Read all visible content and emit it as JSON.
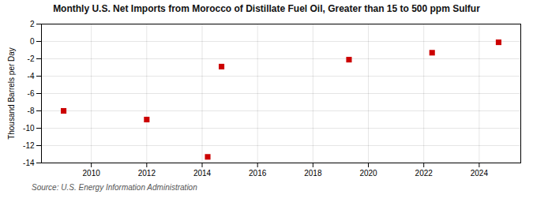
{
  "chart_data": {
    "type": "scatter",
    "title": "Monthly U.S. Net Imports from Morocco of Distillate Fuel Oil, Greater than 15 to 500 ppm Sulfur",
    "ylabel": "Thousand Barrels per Day",
    "annotations": [
      "Source: U.S. Energy Information Administration"
    ],
    "x": [
      2009.0,
      2012.0,
      2014.2,
      2014.7,
      2019.3,
      2022.3,
      2024.7
    ],
    "values": [
      -8,
      -9,
      -13.3,
      -2.9,
      -2.1,
      -1.3,
      -0.1
    ],
    "xlim": [
      2008.2,
      2025.5
    ],
    "ylim": [
      -14,
      2
    ],
    "xticks": [
      2010,
      2012,
      2014,
      2016,
      2018,
      2020,
      2022,
      2024
    ],
    "yticks": [
      2,
      0,
      -2,
      -4,
      -6,
      -8,
      -10,
      -12,
      -14
    ],
    "color": "#cc0000",
    "marker": "square",
    "grid": true
  }
}
